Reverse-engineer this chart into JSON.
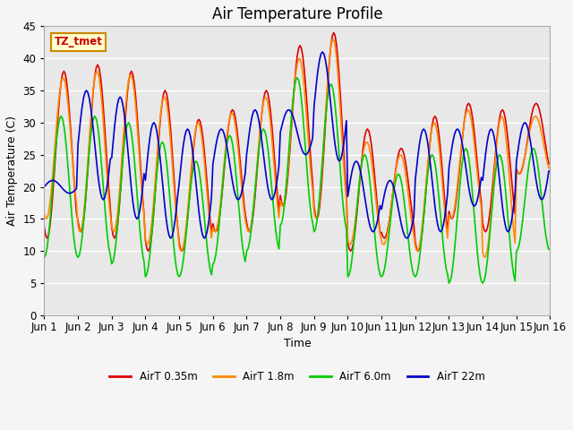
{
  "title": "Air Temperature Profile",
  "xlabel": "Time",
  "ylabel": "Air Temperature (C)",
  "ylim": [
    0,
    45
  ],
  "plot_bg_color": "#e8e8e8",
  "fig_bg_color": "#f5f5f5",
  "annotation_text": "TZ_tmet",
  "annotation_bg": "#ffffcc",
  "annotation_border": "#cc8800",
  "colors": {
    "AirT 0.35m": "#dd0000",
    "AirT 1.8m": "#ff8800",
    "AirT 6.0m": "#00cc00",
    "AirT 22m": "#0000cc"
  },
  "xtick_labels": [
    "Jun 1",
    "Jun 2",
    "Jun 3",
    "Jun 4",
    "Jun 5",
    "Jun 6",
    "Jun 7",
    "Jun 8",
    "Jun 9",
    "Jun 10",
    "Jun 11",
    "Jun 12",
    "Jun 13",
    "Jun 14",
    "Jun 15",
    "Jun 16"
  ],
  "ytick_values": [
    0,
    5,
    10,
    15,
    20,
    25,
    30,
    35,
    40,
    45
  ],
  "grid_color": "#ffffff",
  "title_fontsize": 12,
  "n_days": 15
}
